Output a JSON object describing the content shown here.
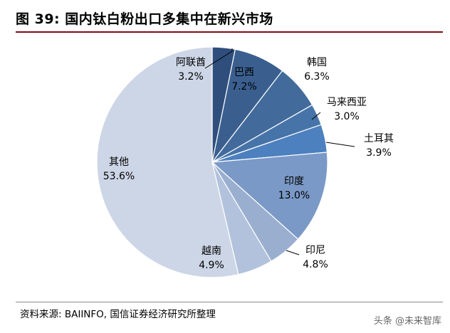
{
  "header": {
    "title": "图 39:  国内钛白粉出口多集中在新兴市场"
  },
  "footer": {
    "source": "资料来源: BAIINFO,  国信证券经济研究所整理",
    "watermark": "头条 @未来智库"
  },
  "chart_data": {
    "type": "pie",
    "title": "图 39:  国内钛白粉出口多集中在新兴市场",
    "slices": [
      {
        "name": "阿联酋",
        "value": 3.2,
        "label": "3.2%",
        "color": "#2f4e7c"
      },
      {
        "name": "巴西",
        "value": 7.2,
        "label": "7.2%",
        "color": "#3a5f8f"
      },
      {
        "name": "韩国",
        "value": 6.3,
        "label": "6.3%",
        "color": "#426b9c"
      },
      {
        "name": "马来西亚",
        "value": 3.0,
        "label": "3.0%",
        "color": "#4774a8"
      },
      {
        "name": "土耳其",
        "value": 3.9,
        "label": "3.9%",
        "color": "#4d80bf"
      },
      {
        "name": "印度",
        "value": 13.0,
        "label": "13.0%",
        "color": "#7a99c7"
      },
      {
        "name": "印尼",
        "value": 4.8,
        "label": "4.8%",
        "color": "#9aafcf"
      },
      {
        "name": "越南",
        "value": 4.9,
        "label": "4.9%",
        "color": "#b3c2dc"
      },
      {
        "name": "其他",
        "value": 53.6,
        "label": "53.6%",
        "color": "#cdd6e6"
      }
    ]
  }
}
